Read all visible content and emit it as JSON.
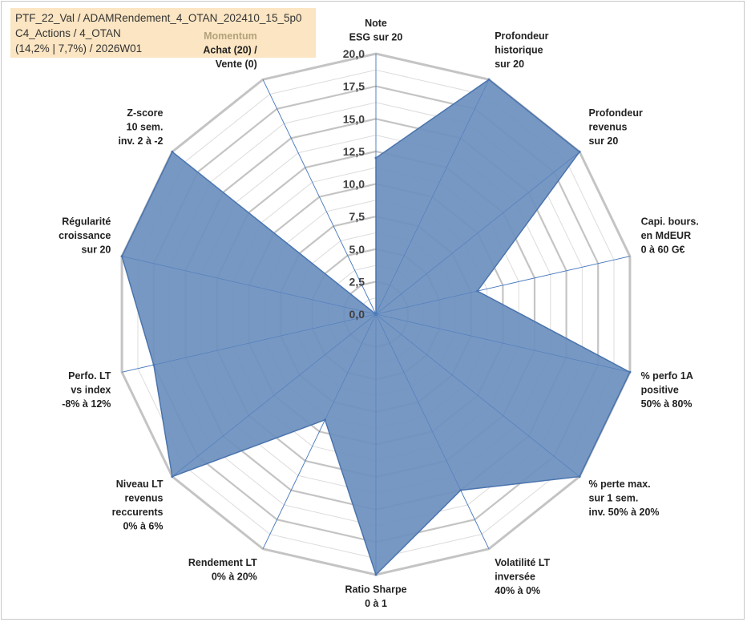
{
  "info": {
    "line1": "PTF_22_Val / ADAMRendement_4_OTAN_202410_15_5p0",
    "line2": "C4_Actions / 4_OTAN",
    "line3": "(14,2% | 7,7%) / 2026W01"
  },
  "colors": {
    "fill": "#6b8fbe",
    "stroke": "#4a74ad",
    "grid": "#c4c4c4",
    "spoke": "#4a7bc0",
    "info_bg": "#fbe5c2",
    "momentum": "#b3a27b"
  },
  "chart_data": {
    "type": "radar",
    "rmin": 0,
    "rmax": 20,
    "ticks": [
      "0,0",
      "2,5",
      "5,0",
      "7,5",
      "10,0",
      "12,5",
      "15,0",
      "17,5",
      "20,0"
    ],
    "gridlines": true,
    "axes": [
      {
        "label": [
          "Note",
          "ESG sur 20"
        ],
        "value": 12
      },
      {
        "label": [
          "Profondeur",
          "historique",
          "sur 20"
        ],
        "value": 20
      },
      {
        "label": [
          "Profondeur",
          "revenus",
          "sur 20"
        ],
        "value": 20
      },
      {
        "label": [
          "Capi. bours.",
          "en MdEUR",
          "0 à 60 G€"
        ],
        "value": 8
      },
      {
        "label": [
          "% perfo 1A",
          "positive",
          "50% à 80%"
        ],
        "value": 20
      },
      {
        "label": [
          "% perte max.",
          "sur 1 sem.",
          "inv. 50% à 20%"
        ],
        "value": 20
      },
      {
        "label": [
          "Volatilité LT",
          "inversée",
          "40% à 0%"
        ],
        "value": 15
      },
      {
        "label": [
          "Ratio Sharpe",
          "0 à 1"
        ],
        "value": 20
      },
      {
        "label": [
          "Rendement LT",
          "0% à 20%"
        ],
        "value": 9
      },
      {
        "label": [
          "Niveau LT",
          "revenus",
          "reccurents",
          "0% à 6%"
        ],
        "value": 20
      },
      {
        "label": [
          "Perfo. LT",
          "vs index",
          "-8% à 12%"
        ],
        "value": 17.5
      },
      {
        "label": [
          "Régularité",
          "croissance",
          "sur 20"
        ],
        "value": 20
      },
      {
        "label": [
          "Z-score",
          "10 sem.",
          "inv. 2 à -2"
        ],
        "value": 20
      },
      {
        "label": [
          "Achat (20) /",
          "Vente (0)"
        ],
        "value": 0,
        "header": "Momentum"
      }
    ]
  }
}
